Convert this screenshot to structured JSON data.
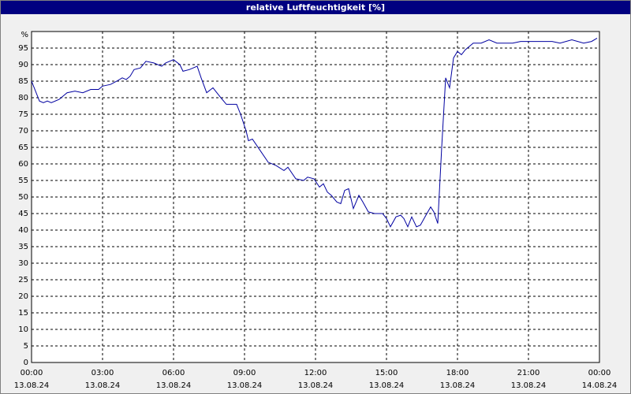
{
  "chart_data": {
    "type": "line",
    "title": "relative Luftfeuchtigkeit [%]",
    "y_unit": "%",
    "xlim": [
      "2024-08-13T00:00",
      "2024-08-14T00:00"
    ],
    "xticks": [
      {
        "value": "2024-08-13T00:00",
        "label": "00:00",
        "date": "13.08.24"
      },
      {
        "value": "2024-08-13T03:00",
        "label": "03:00",
        "date": "13.08.24"
      },
      {
        "value": "2024-08-13T06:00",
        "label": "06:00",
        "date": "13.08.24"
      },
      {
        "value": "2024-08-13T09:00",
        "label": "09:00",
        "date": "13.08.24"
      },
      {
        "value": "2024-08-13T12:00",
        "label": "12:00",
        "date": "13.08.24"
      },
      {
        "value": "2024-08-13T15:00",
        "label": "15:00",
        "date": "13.08.24"
      },
      {
        "value": "2024-08-13T18:00",
        "label": "18:00",
        "date": "13.08.24"
      },
      {
        "value": "2024-08-13T21:00",
        "label": "21:00",
        "date": "13.08.24"
      },
      {
        "value": "2024-08-14T00:00",
        "label": "00:00",
        "date": "14.08.24"
      }
    ],
    "ylim": [
      0,
      100
    ],
    "yticks": [
      0,
      5,
      10,
      15,
      20,
      25,
      30,
      35,
      40,
      45,
      50,
      55,
      60,
      65,
      70,
      75,
      80,
      85,
      90,
      95
    ],
    "grid": true,
    "x": [
      "2024-08-13T00:00",
      "2024-08-13T00:10",
      "2024-08-13T00:20",
      "2024-08-13T00:30",
      "2024-08-13T00:40",
      "2024-08-13T00:50",
      "2024-08-13T01:10",
      "2024-08-13T01:30",
      "2024-08-13T01:50",
      "2024-08-13T02:10",
      "2024-08-13T02:30",
      "2024-08-13T02:50",
      "2024-08-13T03:00",
      "2024-08-13T03:20",
      "2024-08-13T03:36",
      "2024-08-13T03:50",
      "2024-08-13T04:00",
      "2024-08-13T04:10",
      "2024-08-13T04:20",
      "2024-08-13T04:36",
      "2024-08-13T04:50",
      "2024-08-13T05:10",
      "2024-08-13T05:30",
      "2024-08-13T05:40",
      "2024-08-13T06:00",
      "2024-08-13T06:16",
      "2024-08-13T06:24",
      "2024-08-13T06:40",
      "2024-08-13T07:00",
      "2024-08-13T07:10",
      "2024-08-13T07:24",
      "2024-08-13T07:40",
      "2024-08-13T08:00",
      "2024-08-13T08:14",
      "2024-08-13T08:40",
      "2024-08-13T08:50",
      "2024-08-13T09:04",
      "2024-08-13T09:10",
      "2024-08-13T09:20",
      "2024-08-13T09:40",
      "2024-08-13T10:00",
      "2024-08-13T10:20",
      "2024-08-13T10:40",
      "2024-08-13T10:50",
      "2024-08-13T11:10",
      "2024-08-13T11:30",
      "2024-08-13T11:40",
      "2024-08-13T11:56",
      "2024-08-13T12:10",
      "2024-08-13T12:20",
      "2024-08-13T12:30",
      "2024-08-13T12:40",
      "2024-08-13T12:54",
      "2024-08-13T13:04",
      "2024-08-13T13:14",
      "2024-08-13T13:24",
      "2024-08-13T13:36",
      "2024-08-13T13:50",
      "2024-08-13T14:00",
      "2024-08-13T14:14",
      "2024-08-13T14:30",
      "2024-08-13T14:50",
      "2024-08-13T15:00",
      "2024-08-13T15:10",
      "2024-08-13T15:24",
      "2024-08-13T15:36",
      "2024-08-13T15:44",
      "2024-08-13T15:54",
      "2024-08-13T16:04",
      "2024-08-13T16:16",
      "2024-08-13T16:26",
      "2024-08-13T16:40",
      "2024-08-13T16:52",
      "2024-08-13T17:00",
      "2024-08-13T17:10",
      "2024-08-13T17:20",
      "2024-08-13T17:30",
      "2024-08-13T17:40",
      "2024-08-13T17:50",
      "2024-08-13T18:00",
      "2024-08-13T18:10",
      "2024-08-13T18:20",
      "2024-08-13T18:40",
      "2024-08-13T19:00",
      "2024-08-13T19:20",
      "2024-08-13T19:40",
      "2024-08-13T20:20",
      "2024-08-13T20:40",
      "2024-08-13T21:20",
      "2024-08-13T22:00",
      "2024-08-13T22:20",
      "2024-08-13T22:50",
      "2024-08-13T23:20",
      "2024-08-13T23:40",
      "2024-08-13T23:54"
    ],
    "series": [
      {
        "name": "relative Luftfeuchtigkeit",
        "color": "#0000a0",
        "values": [
          85,
          82,
          79,
          78.5,
          79,
          78.5,
          79.5,
          81.5,
          82,
          81.5,
          82.5,
          82.5,
          83.5,
          84,
          85,
          86,
          85.5,
          86.5,
          88.5,
          89,
          91,
          90.5,
          89.5,
          90.5,
          91.5,
          90,
          88,
          88.5,
          89.5,
          86,
          81.5,
          83,
          80,
          78,
          78,
          75,
          70,
          67,
          67.5,
          64,
          60.5,
          59.5,
          58,
          59,
          55.5,
          55,
          56,
          55.5,
          53,
          54,
          51.5,
          50.5,
          48.5,
          48,
          52,
          52.5,
          46.5,
          50.5,
          48.5,
          45.5,
          45,
          45,
          43.5,
          41,
          44,
          44.5,
          43.5,
          41,
          44,
          41,
          41.5,
          44.5,
          47,
          45.5,
          42,
          65,
          86,
          83,
          92,
          94,
          93,
          94.5,
          96.5,
          96.5,
          97.5,
          96.5,
          96.5,
          97,
          97,
          97,
          96.5,
          97.5,
          96.5,
          97,
          98
        ]
      }
    ]
  }
}
